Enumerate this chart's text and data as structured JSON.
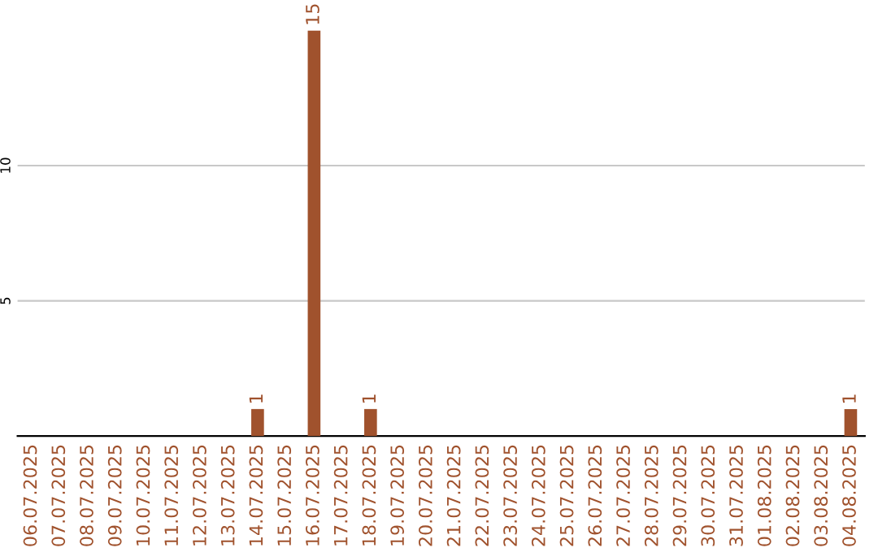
{
  "chart_data": {
    "type": "bar",
    "categories": [
      "06.07.2025",
      "07.07.2025",
      "08.07.2025",
      "09.07.2025",
      "10.07.2025",
      "11.07.2025",
      "12.07.2025",
      "13.07.2025",
      "14.07.2025",
      "15.07.2025",
      "16.07.2025",
      "17.07.2025",
      "18.07.2025",
      "19.07.2025",
      "20.07.2025",
      "21.07.2025",
      "22.07.2025",
      "23.07.2025",
      "24.07.2025",
      "25.07.2025",
      "26.07.2025",
      "27.07.2025",
      "28.07.2025",
      "29.07.2025",
      "30.07.2025",
      "31.07.2025",
      "01.08.2025",
      "02.08.2025",
      "03.08.2025",
      "04.08.2025"
    ],
    "values": [
      0,
      0,
      0,
      0,
      0,
      0,
      0,
      0,
      1,
      0,
      15,
      0,
      1,
      0,
      0,
      0,
      0,
      0,
      0,
      0,
      0,
      0,
      0,
      0,
      0,
      0,
      0,
      0,
      0,
      1
    ],
    "value_labels": [
      null,
      null,
      null,
      null,
      null,
      null,
      null,
      null,
      "1",
      null,
      "15",
      null,
      "1",
      null,
      null,
      null,
      null,
      null,
      null,
      null,
      null,
      null,
      null,
      null,
      null,
      null,
      null,
      null,
      null,
      "1"
    ],
    "color": "#a0522d",
    "ylim": [
      0,
      15
    ],
    "yticks": [
      5,
      10
    ],
    "grid": "y"
  }
}
